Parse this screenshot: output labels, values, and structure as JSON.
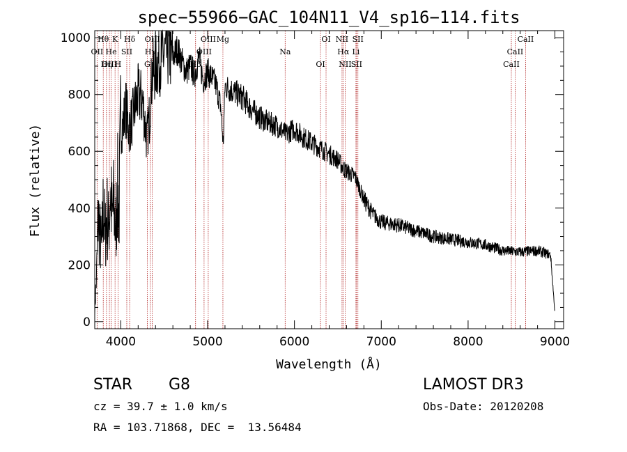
{
  "chart_data": {
    "type": "line",
    "title": "spec−55966−GAC_104N11_V4_sp16−114.fits",
    "xlabel": "Wavelength (Å)",
    "ylabel": "Flux (relative)",
    "xlim": [
      3700,
      9100
    ],
    "ylim": [
      -25,
      1025
    ],
    "x_ticks": [
      4000,
      5000,
      6000,
      7000,
      8000,
      9000
    ],
    "y_ticks": [
      0,
      200,
      400,
      600,
      800,
      1000
    ],
    "grid": false,
    "series": [
      {
        "name": "flux",
        "x": [
          3700,
          3720,
          3740,
          3760,
          3780,
          3800,
          3820,
          3840,
          3860,
          3880,
          3900,
          3920,
          3940,
          3960,
          3980,
          4000,
          4030,
          4060,
          4090,
          4120,
          4150,
          4200,
          4250,
          4300,
          4330,
          4360,
          4400,
          4450,
          4500,
          4550,
          4600,
          4650,
          4700,
          4750,
          4800,
          4850,
          4900,
          4950,
          5000,
          5050,
          5100,
          5150,
          5180,
          5200,
          5300,
          5400,
          5500,
          5600,
          5700,
          5800,
          5900,
          6000,
          6100,
          6200,
          6300,
          6400,
          6500,
          6563,
          6600,
          6700,
          6750,
          6800,
          6900,
          7000,
          7200,
          7400,
          7600,
          7800,
          8000,
          8200,
          8400,
          8600,
          8800,
          8950,
          9000
        ],
        "values": [
          40,
          150,
          380,
          300,
          250,
          420,
          300,
          380,
          330,
          460,
          360,
          420,
          300,
          480,
          380,
          680,
          700,
          760,
          680,
          700,
          740,
          800,
          780,
          640,
          720,
          870,
          900,
          920,
          940,
          950,
          930,
          960,
          920,
          880,
          900,
          870,
          930,
          850,
          880,
          860,
          830,
          760,
          620,
          830,
          810,
          790,
          750,
          720,
          700,
          690,
          660,
          680,
          650,
          630,
          610,
          590,
          570,
          540,
          530,
          510,
          470,
          430,
          380,
          350,
          340,
          320,
          300,
          290,
          280,
          270,
          250,
          245,
          250,
          235,
          30
        ]
      }
    ],
    "reference_lines": [
      {
        "label": "Hθ",
        "x": 3798
      },
      {
        "label": "OII",
        "x": 3727
      },
      {
        "label": "OIII",
        "x": 3869
      },
      {
        "label": "K",
        "x": 3934
      },
      {
        "label": "He",
        "x": 3889
      },
      {
        "label": "Hη",
        "x": 3835
      },
      {
        "label": "Hδ",
        "x": 4102
      },
      {
        "label": "SII",
        "x": 4069
      },
      {
        "label": "H",
        "x": 3968
      },
      {
        "label": "OIII",
        "x": 4363
      },
      {
        "label": "Hγ",
        "x": 4341
      },
      {
        "label": "G",
        "x": 4305
      },
      {
        "label": "OIII",
        "x": 5007
      },
      {
        "label": "OIII",
        "x": 4959
      },
      {
        "label": "Hβ",
        "x": 4861
      },
      {
        "label": "Mg",
        "x": 5176
      },
      {
        "label": "Na",
        "x": 5893
      },
      {
        "label": "OI",
        "x": 6300
      },
      {
        "label": "OI",
        "x": 6364
      },
      {
        "label": "Hα",
        "x": 6563
      },
      {
        "label": "SII",
        "x": 6716
      },
      {
        "label": "NII",
        "x": 6548
      },
      {
        "label": "Li",
        "x": 6708
      },
      {
        "label": "NII",
        "x": 6584
      },
      {
        "label": "SII",
        "x": 6731
      },
      {
        "label": "CaII",
        "x": 8542
      },
      {
        "label": "CaII",
        "x": 8498
      },
      {
        "label": "CaII",
        "x": 8662
      }
    ]
  },
  "info": {
    "class_label": "STAR",
    "subclass": "G8",
    "cz": "cz = 39.7 ± 1.0 km/s",
    "coords": "RA = 103.71868, DEC =  13.56484",
    "survey": "LAMOST DR3",
    "obs_date": "Obs-Date: 20120208"
  },
  "colors": {
    "line": "#000000",
    "reference": "#b02020"
  }
}
